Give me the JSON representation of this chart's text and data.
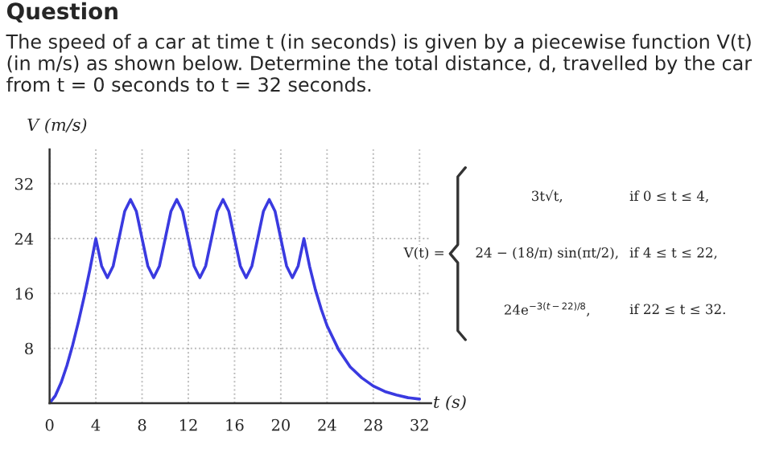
{
  "chart_data": {
    "type": "line",
    "title": "Question",
    "subtitle": "The speed of a car at time t (in seconds) is given by a piecewise function V(t) (in m/s) as shown below. Determine the total distance, d, travelled by the car from t = 0 seconds to t = 32 seconds.",
    "xlabel": "t (s)",
    "ylabel": "V (m/s)",
    "x": [
      0,
      0.5,
      1,
      1.5,
      2,
      2.5,
      3,
      3.5,
      4,
      4.5,
      5,
      5.5,
      6,
      6.5,
      7,
      7.5,
      8,
      8.5,
      9,
      9.5,
      10,
      10.5,
      11,
      11.5,
      12,
      12.5,
      13,
      13.5,
      14,
      14.5,
      15,
      15.5,
      16,
      16.5,
      17,
      17.5,
      18,
      18.5,
      19,
      19.5,
      20,
      20.5,
      21,
      21.5,
      22,
      22.5,
      23,
      23.5,
      24,
      25,
      26,
      27,
      28,
      29,
      30,
      31,
      32
    ],
    "series": [
      {
        "color": "#3a3ae0",
        "values": [
          0,
          1.1,
          3,
          5.5,
          8.5,
          11.9,
          15.6,
          19.6,
          24,
          20,
          18.3,
          20,
          24,
          28,
          29.7,
          28,
          24,
          20,
          18.3,
          20,
          24,
          28,
          29.7,
          28,
          24,
          20,
          18.3,
          20,
          24,
          28,
          29.7,
          28,
          24,
          20,
          18.3,
          20,
          24,
          28,
          29.7,
          28,
          24,
          20,
          18.3,
          20,
          24,
          19.9,
          16.5,
          13.7,
          11.3,
          7.8,
          5.3,
          3.7,
          2.5,
          1.7,
          1.2,
          0.8,
          0.6
        ]
      }
    ],
    "xlim": [
      0,
      33
    ],
    "ylim": [
      0,
      37
    ],
    "xticks": [
      0,
      4,
      8,
      12,
      16,
      20,
      24,
      28,
      32
    ],
    "yticks": [
      {
        "value": 0,
        "label": null
      },
      8,
      16,
      24,
      32
    ],
    "grid": true,
    "marker": "none",
    "line_style": "solid",
    "annotations": [
      "V(t) =",
      "3t√t,",
      "if 0 ≤ t ≤ 4,",
      "24 − (18/π) sin(πt/2),",
      "if 4 ≤ t ≤ 22,",
      "24e$^{−3(t−22)/8}$,",
      "if 22 ≤ t ≤ 32."
    ]
  }
}
